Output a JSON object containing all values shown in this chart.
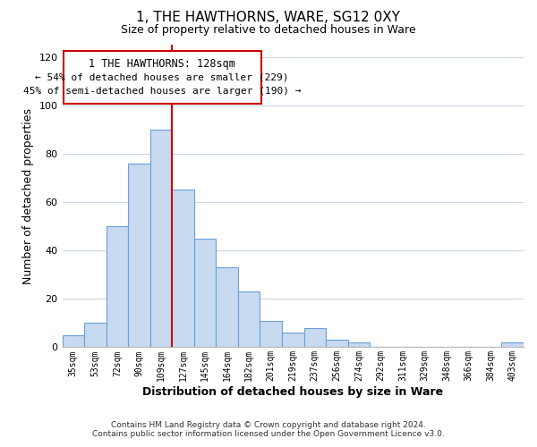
{
  "title": "1, THE HAWTHORNS, WARE, SG12 0XY",
  "subtitle": "Size of property relative to detached houses in Ware",
  "xlabel": "Distribution of detached houses by size in Ware",
  "ylabel": "Number of detached properties",
  "bar_labels": [
    "35sqm",
    "53sqm",
    "72sqm",
    "90sqm",
    "109sqm",
    "127sqm",
    "145sqm",
    "164sqm",
    "182sqm",
    "201sqm",
    "219sqm",
    "237sqm",
    "256sqm",
    "274sqm",
    "292sqm",
    "311sqm",
    "329sqm",
    "348sqm",
    "366sqm",
    "384sqm",
    "403sqm"
  ],
  "bar_values": [
    5,
    10,
    50,
    76,
    90,
    65,
    45,
    33,
    23,
    11,
    6,
    8,
    3,
    2,
    0,
    0,
    0,
    0,
    0,
    0,
    2
  ],
  "bar_color": "#c8daf0",
  "bar_edge_color": "#6a9fd8",
  "reference_line_color": "#cc0000",
  "annotation_title": "1 THE HAWTHORNS: 128sqm",
  "annotation_line1": "← 54% of detached houses are smaller (229)",
  "annotation_line2": "45% of semi-detached houses are larger (190) →",
  "annotation_box_color": "#ffffff",
  "annotation_box_edge_color": "#cc0000",
  "ylim": [
    0,
    125
  ],
  "yticks": [
    0,
    20,
    40,
    60,
    80,
    100,
    120
  ],
  "footer_line1": "Contains HM Land Registry data © Crown copyright and database right 2024.",
  "footer_line2": "Contains public sector information licensed under the Open Government Licence v3.0.",
  "background_color": "#ffffff",
  "grid_color": "#c8d4e8"
}
